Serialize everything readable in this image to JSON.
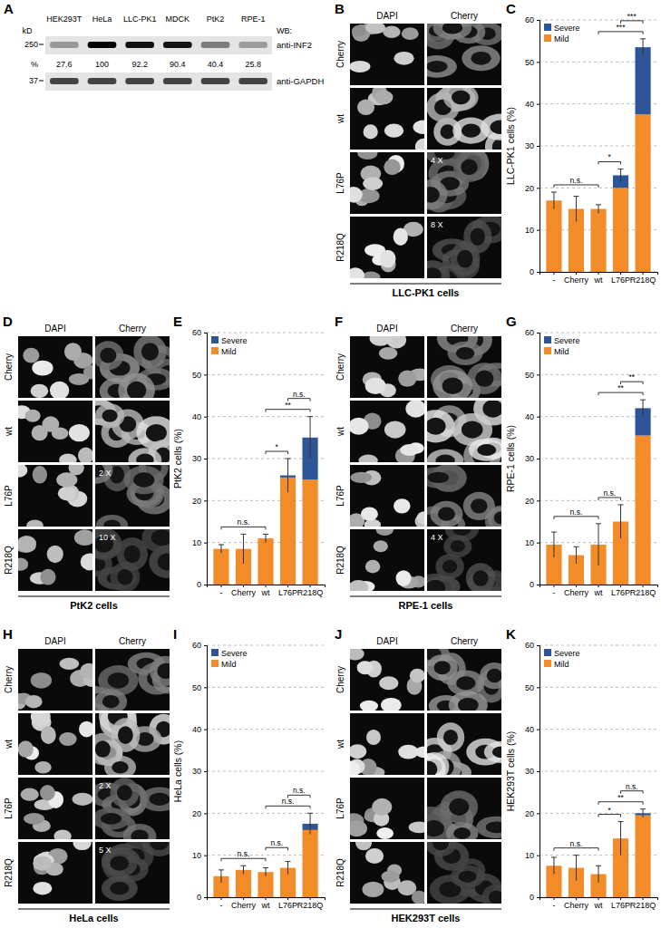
{
  "blot": {
    "title": "A",
    "lanes": [
      "HEK293T",
      "HeLa",
      "LLC-PK1",
      "MDCK",
      "PtK2",
      "RPE-1"
    ],
    "kd_label": "kD",
    "wb_label": "WB:",
    "kd_markers": [
      250,
      37
    ],
    "percent_label": "%",
    "percents": [
      27.6,
      100,
      92.2,
      90.4,
      40.4,
      25.8
    ],
    "antibodies": [
      "anti-INF2",
      "anti-GAPDH"
    ]
  },
  "micrographs": [
    {
      "title": "B",
      "columns": [
        "DAPI",
        "Cherry"
      ],
      "rows": [
        "Cherry",
        "wt",
        "L76P",
        "R218Q"
      ],
      "magnification": [
        null,
        null,
        "4 X",
        "8 X"
      ],
      "caption": "LLC-PK1 cells"
    },
    {
      "title": "D",
      "columns": [
        "DAPI",
        "Cherry"
      ],
      "rows": [
        "Cherry",
        "wt",
        "L76P",
        "R218Q"
      ],
      "magnification": [
        null,
        null,
        "2 X",
        "10 X"
      ],
      "caption": "PtK2 cells"
    },
    {
      "title": "F",
      "columns": [
        "DAPI",
        "Cherry"
      ],
      "rows": [
        "Cherry",
        "wt",
        "L76P",
        "R218Q"
      ],
      "magnification": [
        null,
        null,
        null,
        "4 X"
      ],
      "caption": "RPE-1 cells"
    },
    {
      "title": "H",
      "columns": [
        "DAPI",
        "Cherry"
      ],
      "rows": [
        "Cherry",
        "wt",
        "L76P",
        "R218Q"
      ],
      "magnification": [
        null,
        null,
        "2 X",
        "5 X"
      ],
      "caption": "HeLa cells"
    },
    {
      "title": "J",
      "columns": [
        "DAPI",
        "Cherry"
      ],
      "rows": [
        "Cherry",
        "wt",
        "L76P",
        "R218Q"
      ],
      "magnification": [
        null,
        null,
        null,
        null
      ],
      "caption": "HEK293T cells"
    }
  ],
  "chart_data": [
    {
      "type": "bar",
      "stacked": true,
      "title": "C",
      "ylabel": "LLC-PK1 cells (%)",
      "categories": [
        "-",
        "Cherry",
        "wt",
        "L76P",
        "R218Q"
      ],
      "ylim": [
        0,
        60
      ],
      "yticks": [
        0,
        10,
        20,
        30,
        40,
        50,
        60
      ],
      "grid": true,
      "legend": "top-left",
      "series": [
        {
          "name": "Mild",
          "color": "#f28c28",
          "values": [
            17,
            15,
            15,
            20,
            37.5
          ]
        },
        {
          "name": "Severe",
          "color": "#2e5597",
          "values": [
            0,
            0,
            0,
            3,
            16
          ]
        }
      ],
      "errors": [
        2,
        3,
        1,
        1.5,
        2
      ],
      "significance": [
        {
          "from": "-",
          "to": "wt",
          "label": "n.s."
        },
        {
          "from": "wt",
          "to": "L76P",
          "label": "*"
        },
        {
          "from": "wt",
          "to": "R218Q",
          "label": "***"
        },
        {
          "from": "L76P",
          "to": "R218Q",
          "label": "***"
        }
      ]
    },
    {
      "type": "bar",
      "stacked": true,
      "title": "E",
      "ylabel": "PtK2 cells (%)",
      "categories": [
        "-",
        "Cherry",
        "wt",
        "L76P",
        "R218Q"
      ],
      "ylim": [
        0,
        60
      ],
      "yticks": [
        0,
        10,
        20,
        30,
        40,
        50,
        60
      ],
      "grid": true,
      "legend": "top-left",
      "series": [
        {
          "name": "Mild",
          "color": "#f28c28",
          "values": [
            8.5,
            8.5,
            11,
            25.5,
            25
          ]
        },
        {
          "name": "Severe",
          "color": "#2e5597",
          "values": [
            0,
            0,
            0,
            0.5,
            10
          ]
        }
      ],
      "errors": [
        1,
        3.5,
        1,
        4,
        5
      ],
      "significance": [
        {
          "from": "-",
          "to": "wt",
          "label": "n.s."
        },
        {
          "from": "wt",
          "to": "L76P",
          "label": "*"
        },
        {
          "from": "wt",
          "to": "R218Q",
          "label": "**"
        },
        {
          "from": "L76P",
          "to": "R218Q",
          "label": "n.s."
        }
      ]
    },
    {
      "type": "bar",
      "stacked": true,
      "title": "G",
      "ylabel": "RPE-1 cells (%)",
      "categories": [
        "-",
        "Cherry",
        "wt",
        "L76P",
        "R218Q"
      ],
      "ylim": [
        0,
        60
      ],
      "yticks": [
        0,
        10,
        20,
        30,
        40,
        50,
        60
      ],
      "grid": true,
      "legend": "top-left",
      "series": [
        {
          "name": "Mild",
          "color": "#f28c28",
          "values": [
            9.5,
            7,
            9.5,
            15,
            35.5
          ]
        },
        {
          "name": "Severe",
          "color": "#2e5597",
          "values": [
            0,
            0,
            0,
            0,
            6.5
          ]
        }
      ],
      "errors": [
        3,
        2,
        5,
        4,
        2
      ],
      "significance": [
        {
          "from": "-",
          "to": "wt",
          "label": "n.s."
        },
        {
          "from": "wt",
          "to": "L76P",
          "label": "n.s."
        },
        {
          "from": "wt",
          "to": "R218Q",
          "label": "**"
        },
        {
          "from": "L76P",
          "to": "R218Q",
          "label": "**"
        }
      ]
    },
    {
      "type": "bar",
      "stacked": true,
      "title": "I",
      "ylabel": "HeLa cells (%)",
      "categories": [
        "-",
        "Cherry",
        "wt",
        "L76P",
        "R218Q"
      ],
      "ylim": [
        0,
        60
      ],
      "yticks": [
        0,
        10,
        20,
        30,
        40,
        50,
        60
      ],
      "grid": true,
      "legend": "top-left",
      "series": [
        {
          "name": "Mild",
          "color": "#f28c28",
          "values": [
            5,
            6.5,
            6,
            7,
            16
          ]
        },
        {
          "name": "Severe",
          "color": "#2e5597",
          "values": [
            0,
            0,
            0,
            0,
            1.5
          ]
        }
      ],
      "errors": [
        1.5,
        1,
        1,
        1.5,
        2.5
      ],
      "significance": [
        {
          "from": "-",
          "to": "wt",
          "label": "n.s."
        },
        {
          "from": "wt",
          "to": "L76P",
          "label": "n.s."
        },
        {
          "from": "wt",
          "to": "R218Q",
          "label": "n.s."
        },
        {
          "from": "L76P",
          "to": "R218Q",
          "label": "n.s."
        }
      ]
    },
    {
      "type": "bar",
      "stacked": true,
      "title": "K",
      "ylabel": "HEK293T cells (%)",
      "categories": [
        "-",
        "Cherry",
        "wt",
        "L76P",
        "R218Q"
      ],
      "ylim": [
        0,
        60
      ],
      "yticks": [
        0,
        10,
        20,
        30,
        40,
        50,
        60
      ],
      "grid": true,
      "legend": "top-left",
      "series": [
        {
          "name": "Mild",
          "color": "#f28c28",
          "values": [
            7.5,
            7,
            5.5,
            14,
            19.5
          ]
        },
        {
          "name": "Severe",
          "color": "#2e5597",
          "values": [
            0,
            0,
            0,
            0,
            0.5
          ]
        }
      ],
      "errors": [
        2,
        3,
        2,
        4,
        1
      ],
      "significance": [
        {
          "from": "-",
          "to": "wt",
          "label": "n.s."
        },
        {
          "from": "wt",
          "to": "L76P",
          "label": "*"
        },
        {
          "from": "wt",
          "to": "R218Q",
          "label": "**"
        },
        {
          "from": "L76P",
          "to": "R218Q",
          "label": "n.s."
        }
      ]
    }
  ]
}
